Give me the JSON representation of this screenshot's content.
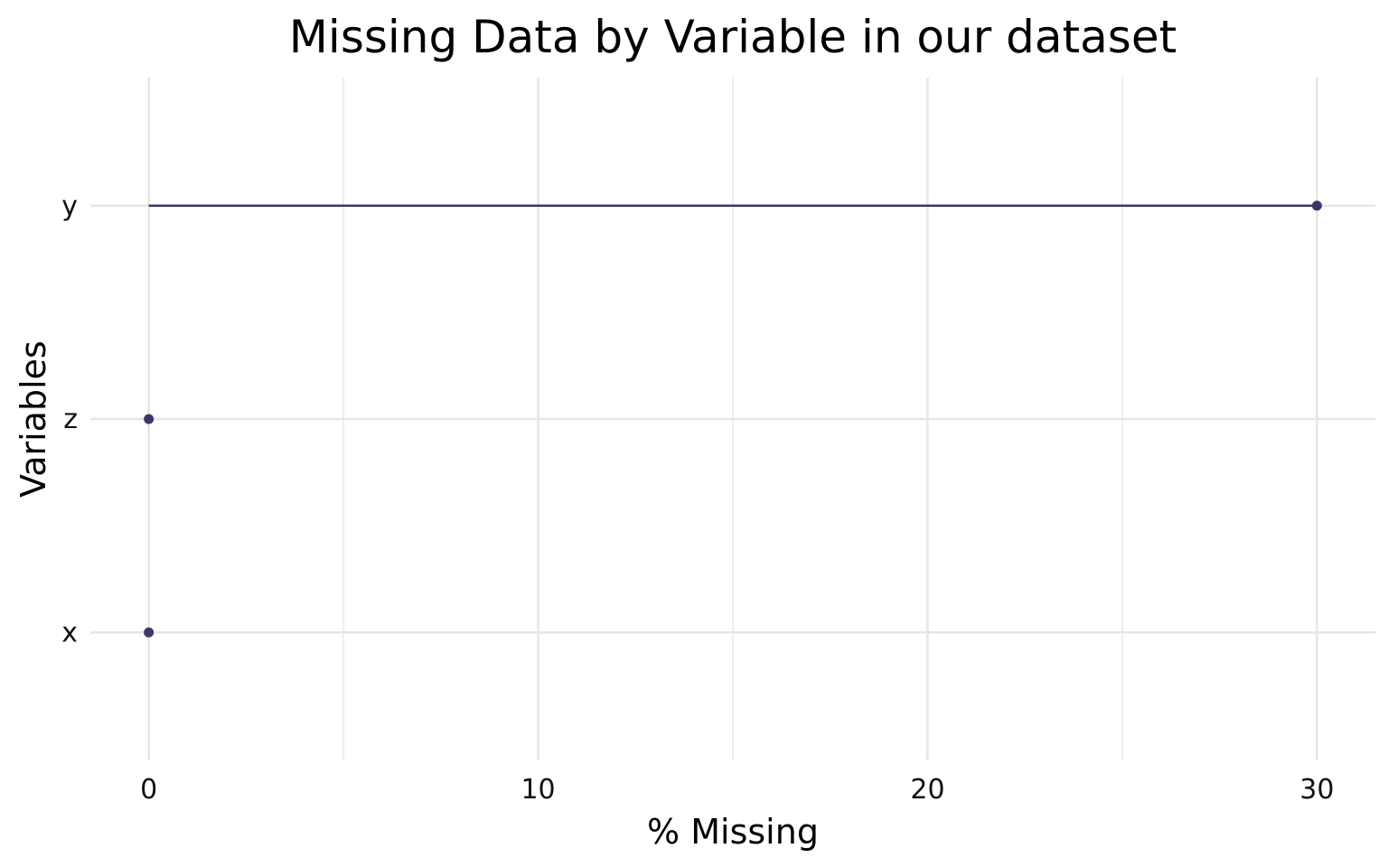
{
  "chart_data": {
    "type": "lollipop",
    "title": "Missing Data by Variable in our dataset",
    "xlabel": "% Missing",
    "ylabel": "Variables",
    "xlim": [
      -1.5,
      31.5
    ],
    "x_ticks": [
      0,
      10,
      20,
      30
    ],
    "x_minor_ticks": [
      5,
      15,
      25
    ],
    "categories": [
      "x",
      "z",
      "y"
    ],
    "values": [
      0,
      0,
      30
    ],
    "grid": true,
    "colors": {
      "mark": "#3a3868",
      "grid_major": "#e6e6e6",
      "grid_minor": "#efefef"
    }
  }
}
